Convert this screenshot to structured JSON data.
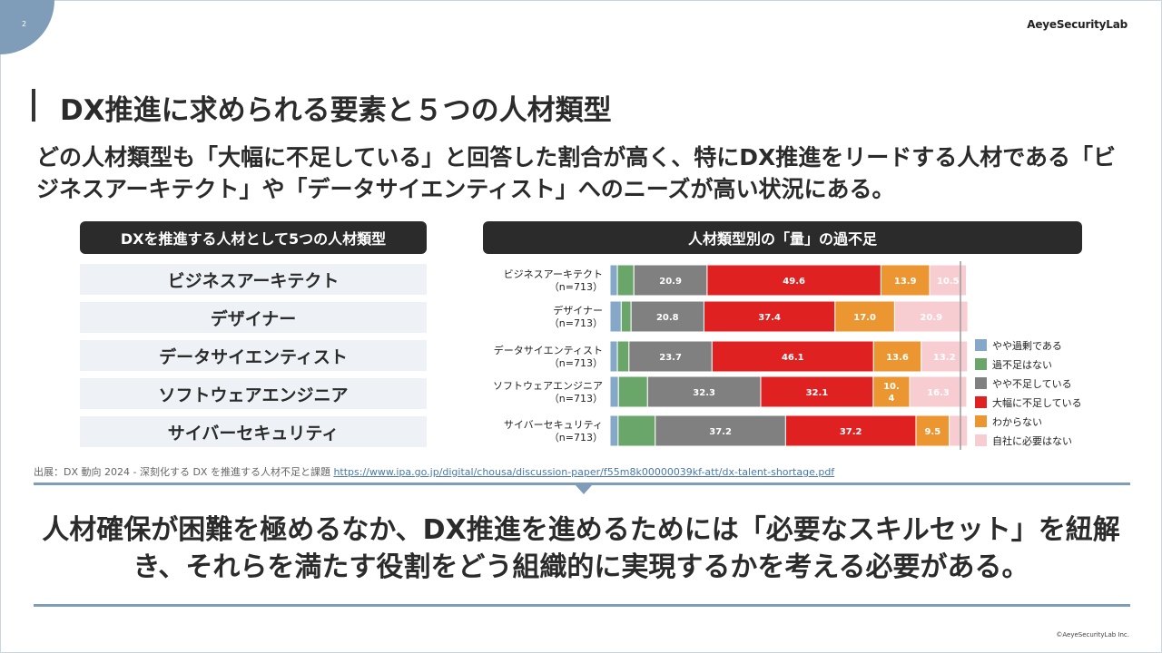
{
  "page_number": "2",
  "logo_text": "AeyeSecurityLab",
  "title": "DX推進に求められる要素と５つの人材類型",
  "subtitle": "どの人材類型も「大幅に不足している」と回答した割合が高く、特にDX推進をリードする人材である「ビジネスアーキテクト」や「データサイエンティスト」へのニーズが高い状況にある。",
  "left_panel": {
    "header": "DXを推進する人材として5つの人材類型",
    "items": [
      "ビジネスアーキテクト",
      "デザイナー",
      "データサイエンティスト",
      "ソフトウェアエンジニア",
      "サイバーセキュリティ"
    ]
  },
  "right_panel": {
    "header": "人材類型別の「量」の過不足"
  },
  "chart_data": {
    "type": "bar",
    "orientation": "horizontal-stacked-100",
    "categories": [
      "ビジネスアーキテクト",
      "デザイナー",
      "データサイエンティスト",
      "ソフトウェアエンジニア",
      "サイバーセキュリティ"
    ],
    "sample_size": "（n=713）",
    "series": [
      {
        "name": "やや過剰である",
        "color": "#86a8c8",
        "values": [
          2.1,
          3.2,
          2.1,
          2.4,
          2.3
        ],
        "labels": [
          "",
          "",
          "",
          "",
          ""
        ]
      },
      {
        "name": "過不足はない",
        "color": "#6aa56a",
        "values": [
          4.7,
          2.8,
          3.3,
          8.3,
          10.6
        ],
        "labels": [
          "",
          "",
          "",
          "",
          ""
        ]
      },
      {
        "name": "やや不足している",
        "color": "#808080",
        "values": [
          20.9,
          20.8,
          23.7,
          32.3,
          37.2
        ],
        "labels": [
          "20.9",
          "20.8",
          "23.7",
          "32.3",
          "37.2"
        ]
      },
      {
        "name": "大幅に不足している",
        "color": "#e02121",
        "values": [
          49.6,
          37.4,
          46.1,
          32.1,
          37.2
        ],
        "labels": [
          "49.6",
          "37.4",
          "46.1",
          "32.1",
          "37.2"
        ]
      },
      {
        "name": "わからない",
        "color": "#ec9632",
        "values": [
          13.9,
          17.0,
          13.6,
          10.4,
          9.5
        ],
        "labels": [
          "13.9",
          "17.0",
          "13.6",
          "10.\n4",
          "9.5"
        ]
      },
      {
        "name": "自社に必要はない",
        "color": "#f7cdd2",
        "values": [
          10.5,
          20.9,
          13.2,
          16.3,
          5.2
        ],
        "labels": [
          "10.5",
          "20.9",
          "13.2",
          "16.3",
          ""
        ]
      }
    ],
    "xlim": [
      0,
      100
    ],
    "legend": "right"
  },
  "source": {
    "text": "出展：DX 動向 2024 - 深刻化する DX を推進する人材不足と課題 ",
    "link": "https://www.ipa.go.jp/digital/chousa/discussion-paper/f55m8k00000039kf-att/dx-talent-shortage.pdf"
  },
  "conclusion": "人材確保が困難を極めるなか、DX推進を進めるためには「必要なスキルセット」を紐解き、それらを満たす役割をどう組織的に実現するかを考える必要がある。",
  "copyright": "©AeyeSecurityLab Inc."
}
